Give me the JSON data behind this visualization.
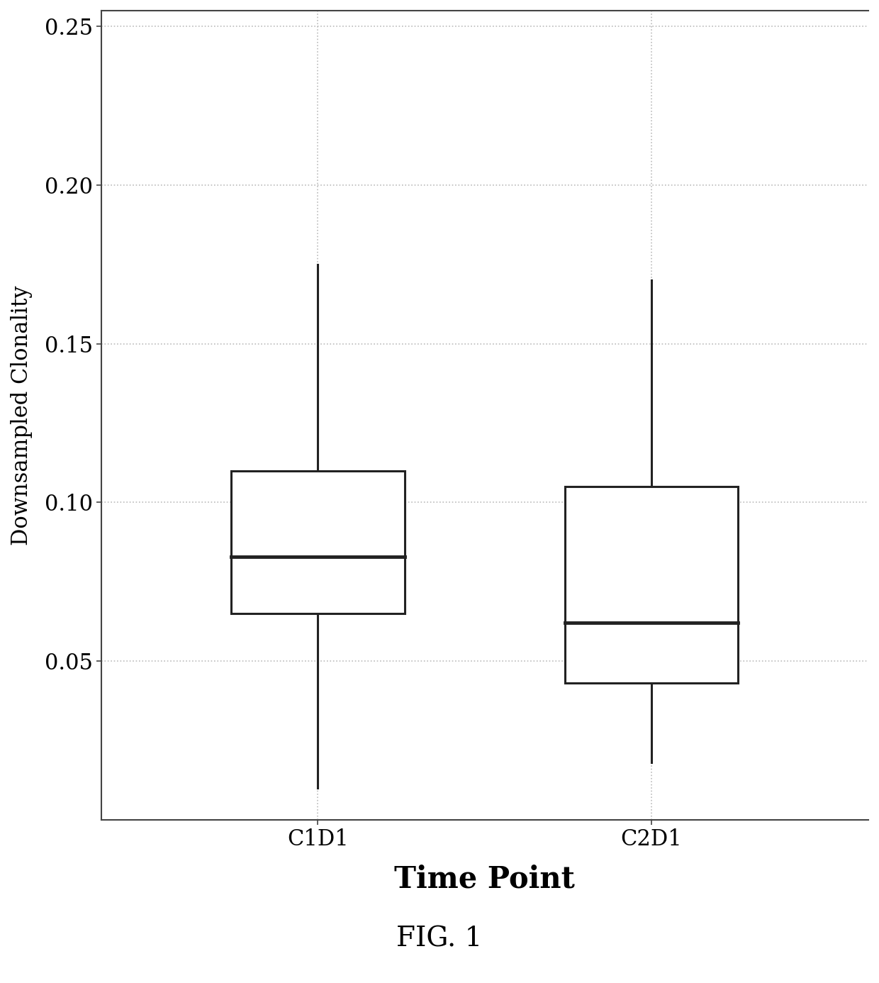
{
  "categories": [
    "C1D1",
    "C2D1"
  ],
  "xlabel": "Time Point",
  "ylabel": "Downsampled Clonality",
  "ylim": [
    0.0,
    0.255
  ],
  "yticks": [
    0.05,
    0.1,
    0.15,
    0.2,
    0.25
  ],
  "fig_caption": "FIG. 1",
  "background_color": "#ffffff",
  "box_color": "#ffffff",
  "box_edgecolor": "#222222",
  "median_color": "#222222",
  "whisker_color": "#222222",
  "grid_color": "#bbbbbb",
  "boxes": [
    {
      "label": "C1D1",
      "whisker_low": 0.01,
      "q1": 0.065,
      "median": 0.083,
      "q3": 0.11,
      "whisker_high": 0.175
    },
    {
      "label": "C2D1",
      "whisker_low": 0.018,
      "q1": 0.043,
      "median": 0.062,
      "q3": 0.105,
      "whisker_high": 0.17
    }
  ],
  "box_width": 0.52,
  "linewidth": 2.2,
  "median_linewidth": 3.5,
  "xlabel_fontsize": 30,
  "ylabel_fontsize": 22,
  "tick_fontsize": 22,
  "caption_fontsize": 28,
  "positions": [
    1,
    2
  ]
}
